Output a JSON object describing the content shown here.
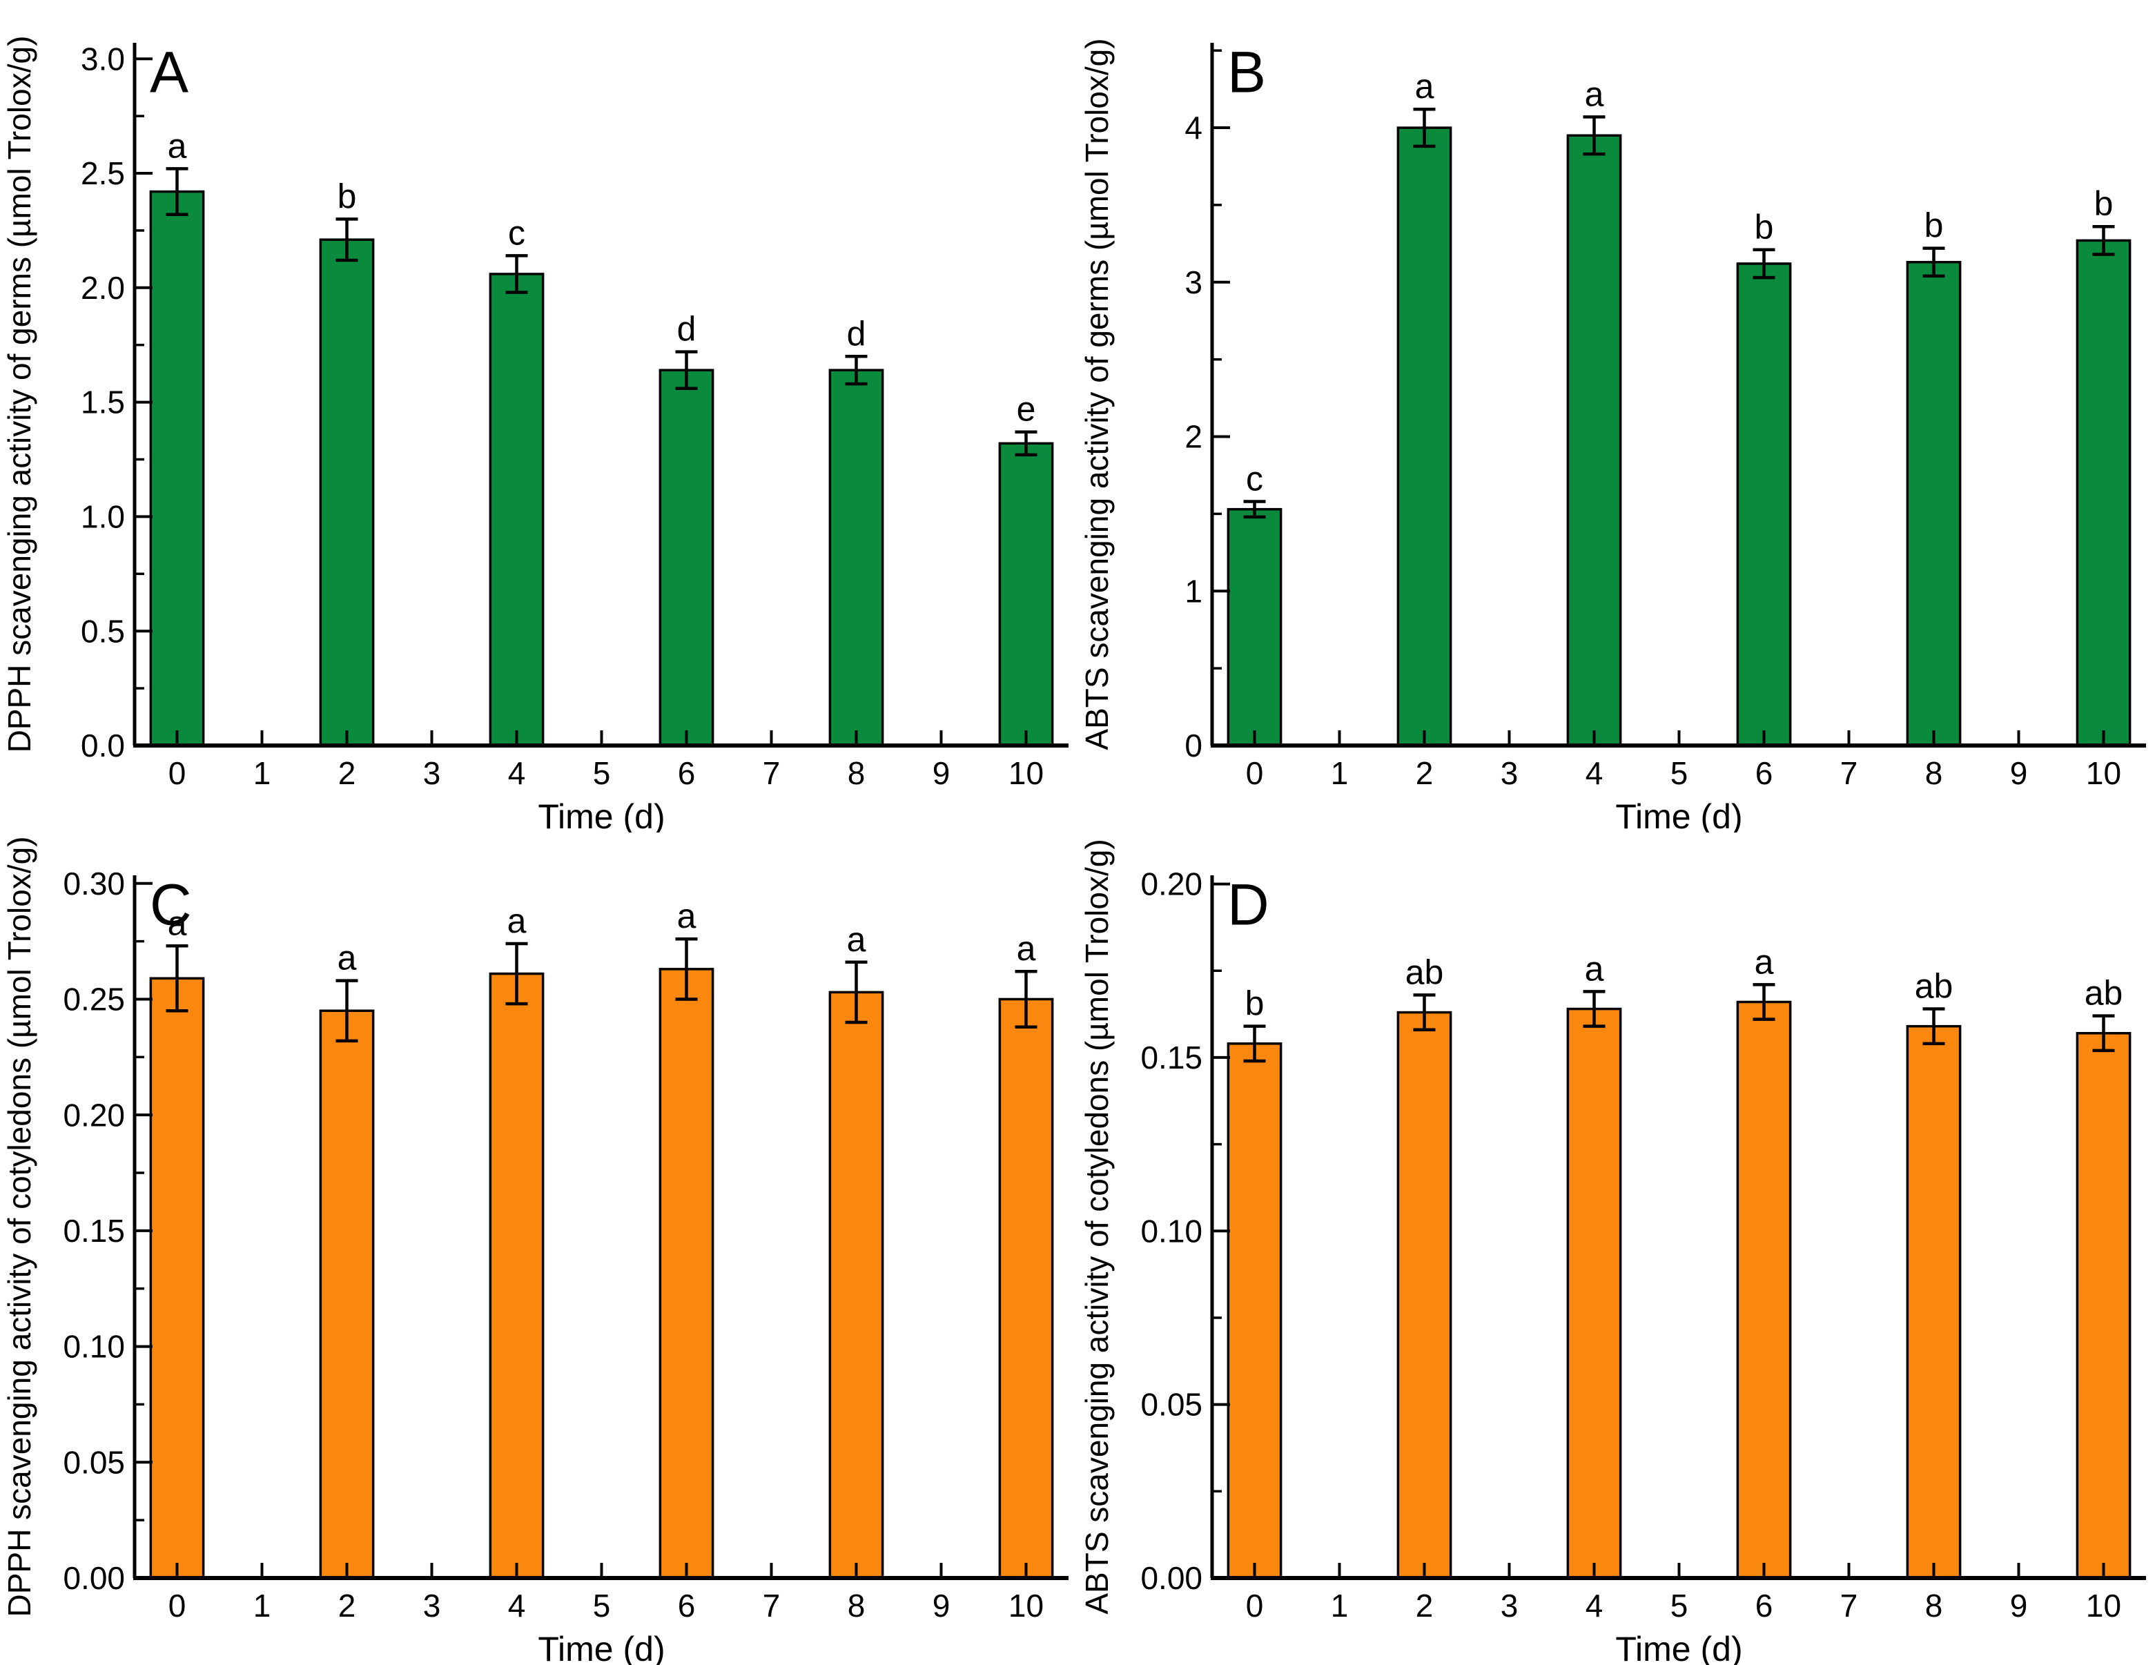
{
  "figure": {
    "background": "#ffffff",
    "axis_color": "#000000",
    "text_color": "#000000",
    "panel_order": [
      "A",
      "B",
      "C",
      "D"
    ]
  },
  "chart_data": [
    {
      "type": "bar",
      "panel_letter": "A",
      "xlabel": "Time (d)",
      "ylabel": "DPPH scavenging activity of germs (µmol Trolox/g)",
      "bar_color": "#0A8A3C",
      "grid": false,
      "x_tick_labels": [
        "0",
        "1",
        "2",
        "3",
        "4",
        "5",
        "6",
        "7",
        "8",
        "9",
        "10"
      ],
      "bar_positions": [
        0,
        2,
        4,
        6,
        8,
        10
      ],
      "values": [
        2.42,
        2.21,
        2.06,
        1.64,
        1.64,
        1.32
      ],
      "errors": [
        0.1,
        0.09,
        0.08,
        0.08,
        0.06,
        0.05
      ],
      "sig_letters": [
        "a",
        "b",
        "c",
        "d",
        "d",
        "e"
      ],
      "ylim": [
        0,
        3.07
      ],
      "y_ticks": [
        {
          "v": 0.0,
          "label": "0.0"
        },
        {
          "v": 0.5,
          "label": "0.5"
        },
        {
          "v": 1.0,
          "label": "1.0"
        },
        {
          "v": 1.5,
          "label": "1.5"
        },
        {
          "v": 2.0,
          "label": "2.0"
        },
        {
          "v": 2.5,
          "label": "2.5"
        },
        {
          "v": 3.0,
          "label": "3.0"
        }
      ],
      "y_minor_step": 0.25
    },
    {
      "type": "bar",
      "panel_letter": "B",
      "xlabel": "Time (d)",
      "ylabel": "ABTS scavenging activity of germs (µmol Trolox/g)",
      "bar_color": "#0A8A3C",
      "grid": false,
      "x_tick_labels": [
        "0",
        "1",
        "2",
        "3",
        "4",
        "5",
        "6",
        "7",
        "8",
        "9",
        "10"
      ],
      "bar_positions": [
        0,
        2,
        4,
        6,
        8,
        10
      ],
      "values": [
        1.53,
        4.0,
        3.95,
        3.12,
        3.13,
        3.27
      ],
      "errors": [
        0.05,
        0.12,
        0.12,
        0.09,
        0.09,
        0.09
      ],
      "sig_letters": [
        "c",
        "a",
        "a",
        "b",
        "b",
        "b"
      ],
      "ylim": [
        0,
        4.55
      ],
      "y_ticks": [
        {
          "v": 0,
          "label": "0"
        },
        {
          "v": 1,
          "label": "1"
        },
        {
          "v": 2,
          "label": "2"
        },
        {
          "v": 3,
          "label": "3"
        },
        {
          "v": 4,
          "label": "4"
        }
      ],
      "y_minor_step": 0.5
    },
    {
      "type": "bar",
      "panel_letter": "C",
      "xlabel": "Time (d)",
      "ylabel": "DPPH scavenging activity of cotyledons (µmol Trolox/g)",
      "bar_color": "#FA870E",
      "grid": false,
      "x_tick_labels": [
        "0",
        "1",
        "2",
        "3",
        "4",
        "5",
        "6",
        "7",
        "8",
        "9",
        "10"
      ],
      "bar_positions": [
        0,
        2,
        4,
        6,
        8,
        10
      ],
      "values": [
        0.259,
        0.245,
        0.261,
        0.263,
        0.253,
        0.25
      ],
      "errors": [
        0.014,
        0.013,
        0.013,
        0.013,
        0.013,
        0.012
      ],
      "sig_letters": [
        "a",
        "a",
        "a",
        "a",
        "a",
        "a"
      ],
      "ylim": [
        0,
        0.3035
      ],
      "y_ticks": [
        {
          "v": 0.0,
          "label": "0.00"
        },
        {
          "v": 0.05,
          "label": "0.05"
        },
        {
          "v": 0.1,
          "label": "0.10"
        },
        {
          "v": 0.15,
          "label": "0.15"
        },
        {
          "v": 0.2,
          "label": "0.20"
        },
        {
          "v": 0.25,
          "label": "0.25"
        },
        {
          "v": 0.3,
          "label": "0.30"
        }
      ],
      "y_minor_step": 0.025
    },
    {
      "type": "bar",
      "panel_letter": "D",
      "xlabel": "Time (d)",
      "ylabel": "ABTS scavenging activity of cotyledons (µmol Trolox/g)",
      "bar_color": "#FA870E",
      "grid": false,
      "x_tick_labels": [
        "0",
        "1",
        "2",
        "3",
        "4",
        "5",
        "6",
        "7",
        "8",
        "9",
        "10"
      ],
      "bar_positions": [
        0,
        2,
        4,
        6,
        8,
        10
      ],
      "values": [
        0.154,
        0.163,
        0.164,
        0.166,
        0.159,
        0.157
      ],
      "errors": [
        0.005,
        0.005,
        0.005,
        0.005,
        0.005,
        0.005
      ],
      "sig_letters": [
        "b",
        "ab",
        "a",
        "a",
        "ab",
        "ab"
      ],
      "ylim": [
        0,
        0.2025
      ],
      "y_ticks": [
        {
          "v": 0.0,
          "label": "0.00"
        },
        {
          "v": 0.05,
          "label": "0.05"
        },
        {
          "v": 0.1,
          "label": "0.10"
        },
        {
          "v": 0.15,
          "label": "0.15"
        },
        {
          "v": 0.2,
          "label": "0.20"
        }
      ],
      "y_minor_step": 0.025
    }
  ]
}
